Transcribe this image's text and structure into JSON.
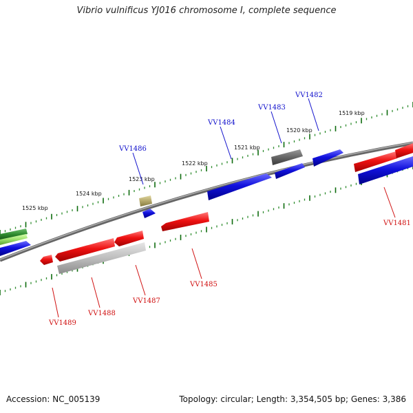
{
  "title": "Vibrio vulnificus YJ016 chromosome I, complete sequence",
  "accession_text": "Accession: NC_005139",
  "summary_text": "Topology: circular; Length: 3,354,505 bp; Genes: 3,386",
  "colors": {
    "backbone": "#8a8a8a",
    "tick_major": "#0d6b0d",
    "tick_minor": "#2d8b2d",
    "forward_label": "#1010cc",
    "reverse_label": "#d01010",
    "gene_red": "#ee1111",
    "gene_blue": "#1111dd",
    "gene_gray": "#bbbbbb",
    "gene_darkgray": "#666666",
    "gene_olive": "#b5a86a",
    "gene_green": "#2e8b2e",
    "gene_lightgreen": "#9be06b"
  },
  "kbp_labels": [
    "1519 kbp",
    "1520 kbp",
    "1521 kbp",
    "1522 kbp",
    "1523 kbp",
    "1524 kbp",
    "1525 kbp"
  ],
  "forward_gene_labels": [
    "VV1482",
    "VV1483",
    "VV1484",
    "VV1486"
  ],
  "reverse_gene_labels": [
    "VV1481",
    "VV1485",
    "VV1487",
    "VV1488",
    "VV1489"
  ]
}
